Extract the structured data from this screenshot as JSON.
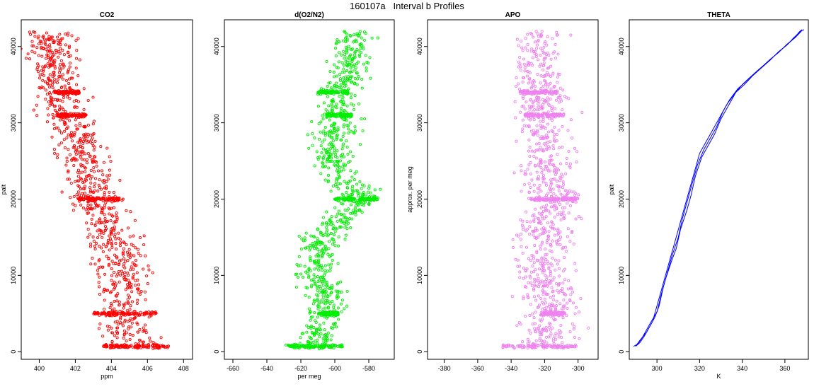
{
  "figure": {
    "title": "160107a   Interval b Profiles"
  },
  "chart_data": [
    {
      "type": "scatter",
      "title": "CO2",
      "xlabel": "ppm",
      "ylabel": "palt",
      "xlim": [
        399,
        408.5
      ],
      "ylim": [
        -1000,
        43500
      ],
      "xticks": [
        400,
        402,
        404,
        406,
        408
      ],
      "yticks": [
        0,
        10000,
        20000,
        30000,
        40000
      ],
      "color": "#ff0000",
      "marker": "open-circle",
      "profile": [
        [
          400.4,
          42000
        ],
        [
          400.8,
          39500
        ],
        [
          401.0,
          37000
        ],
        [
          401.3,
          34000
        ],
        [
          401.5,
          31000
        ],
        [
          402.3,
          27000
        ],
        [
          402.6,
          24000
        ],
        [
          403.0,
          20000
        ],
        [
          403.6,
          17000
        ],
        [
          404.3,
          13500
        ],
        [
          404.6,
          10000
        ],
        [
          404.4,
          7000
        ],
        [
          404.7,
          5000
        ],
        [
          405.0,
          2000
        ],
        [
          405.2,
          700
        ]
      ],
      "spread": 0.7,
      "flight_levels": [
        [
          34000,
          400.8,
          402.2
        ],
        [
          31000,
          401.0,
          402.6
        ],
        [
          20000,
          402.2,
          404.5
        ],
        [
          5000,
          403.0,
          406.5
        ],
        [
          700,
          403.5,
          407.2
        ]
      ]
    },
    {
      "type": "scatter",
      "title": "d(O2/N2)",
      "xlabel": "per meg",
      "ylabel": "",
      "xlim": [
        -665,
        -565
      ],
      "ylim": [
        -1000,
        43500
      ],
      "xticks": [
        -660,
        -640,
        -620,
        -600,
        -580
      ],
      "yticks": [
        0,
        10000,
        20000,
        30000,
        40000
      ],
      "color": "#00ee00",
      "marker": "open-circle",
      "profile": [
        [
          -588,
          42000
        ],
        [
          -590,
          38000
        ],
        [
          -597,
          34000
        ],
        [
          -600,
          30000
        ],
        [
          -602,
          26000
        ],
        [
          -593,
          22000
        ],
        [
          -585,
          20000
        ],
        [
          -597,
          17000
        ],
        [
          -608,
          14500
        ],
        [
          -612,
          11000
        ],
        [
          -606,
          8000
        ],
        [
          -606,
          5000
        ],
        [
          -612,
          700
        ]
      ],
      "spread": 6,
      "flight_levels": [
        [
          34000,
          -610,
          -592
        ],
        [
          31000,
          -605,
          -590
        ],
        [
          20000,
          -600,
          -575
        ],
        [
          5000,
          -610,
          -598
        ],
        [
          700,
          -630,
          -595
        ]
      ]
    },
    {
      "type": "scatter",
      "title": "APO",
      "xlabel": "",
      "ylabel": "approx. per meg",
      "xlim": [
        -390,
        -288
      ],
      "ylim": [
        -1000,
        43500
      ],
      "xticks": [
        -380,
        -360,
        -340,
        -320,
        -300
      ],
      "yticks": [
        0,
        10000,
        20000,
        30000,
        40000
      ],
      "color": "#ee82ee",
      "marker": "open-circle",
      "profile": [
        [
          -322,
          42000
        ],
        [
          -325,
          38000
        ],
        [
          -322,
          34000
        ],
        [
          -322,
          30000
        ],
        [
          -318,
          26000
        ],
        [
          -318,
          22000
        ],
        [
          -312,
          20000
        ],
        [
          -320,
          16000
        ],
        [
          -322,
          12000
        ],
        [
          -318,
          8000
        ],
        [
          -315,
          5000
        ],
        [
          -320,
          700
        ]
      ],
      "spread": 8,
      "flight_levels": [
        [
          34000,
          -335,
          -312
        ],
        [
          31000,
          -332,
          -308
        ],
        [
          20000,
          -330,
          -300
        ],
        [
          5000,
          -322,
          -308
        ],
        [
          700,
          -345,
          -300
        ]
      ]
    },
    {
      "type": "line",
      "title": "THETA",
      "xlabel": "K",
      "ylabel": "palt",
      "xlim": [
        287,
        371
      ],
      "ylim": [
        -1000,
        43500
      ],
      "xticks": [
        300,
        320,
        340,
        360
      ],
      "yticks": [
        0,
        10000,
        20000,
        30000,
        40000
      ],
      "color": "#0000ff",
      "series": [
        {
          "x": [
            290,
            292,
            294,
            296,
            298,
            299,
            302,
            304,
            306,
            308,
            311,
            313,
            315,
            318,
            320,
            323,
            326,
            330,
            333,
            337,
            340,
            343,
            347,
            352,
            356,
            360,
            364,
            367,
            368
          ],
          "y": [
            700,
            1200,
            2000,
            3000,
            4000,
            5000,
            8000,
            10000,
            12000,
            14000,
            17000,
            19000,
            21000,
            24000,
            26000,
            27500,
            29000,
            31000,
            32500,
            34000,
            35000,
            35800,
            36800,
            38000,
            39000,
            40000,
            41000,
            42000,
            42200
          ]
        },
        {
          "x": [
            290,
            292,
            295,
            297,
            299,
            301,
            303,
            305,
            307,
            310,
            312,
            314,
            316,
            319,
            322,
            325,
            328,
            331,
            334,
            338,
            341,
            344,
            348,
            353,
            357,
            361,
            365,
            368,
            369
          ],
          "y": [
            700,
            1500,
            2500,
            3500,
            4500,
            6000,
            8500,
            10500,
            12500,
            15000,
            17500,
            19500,
            21500,
            24500,
            26500,
            28000,
            29500,
            31500,
            33000,
            34500,
            35200,
            36000,
            37000,
            38300,
            39200,
            40300,
            41200,
            42100,
            42200
          ]
        },
        {
          "x": [
            289,
            291,
            293,
            295,
            297,
            300,
            302,
            304,
            307,
            309,
            311,
            314,
            316,
            318,
            321,
            324,
            327,
            330,
            334,
            337,
            341,
            345,
            349,
            353,
            357,
            361,
            364,
            367,
            368
          ],
          "y": [
            700,
            1000,
            1800,
            2800,
            3800,
            5200,
            7500,
            9500,
            12000,
            13500,
            16000,
            18500,
            20500,
            23000,
            25500,
            27000,
            28500,
            30500,
            32500,
            34000,
            35000,
            36200,
            37200,
            38200,
            39300,
            40200,
            41100,
            41900,
            42100
          ]
        }
      ]
    }
  ]
}
